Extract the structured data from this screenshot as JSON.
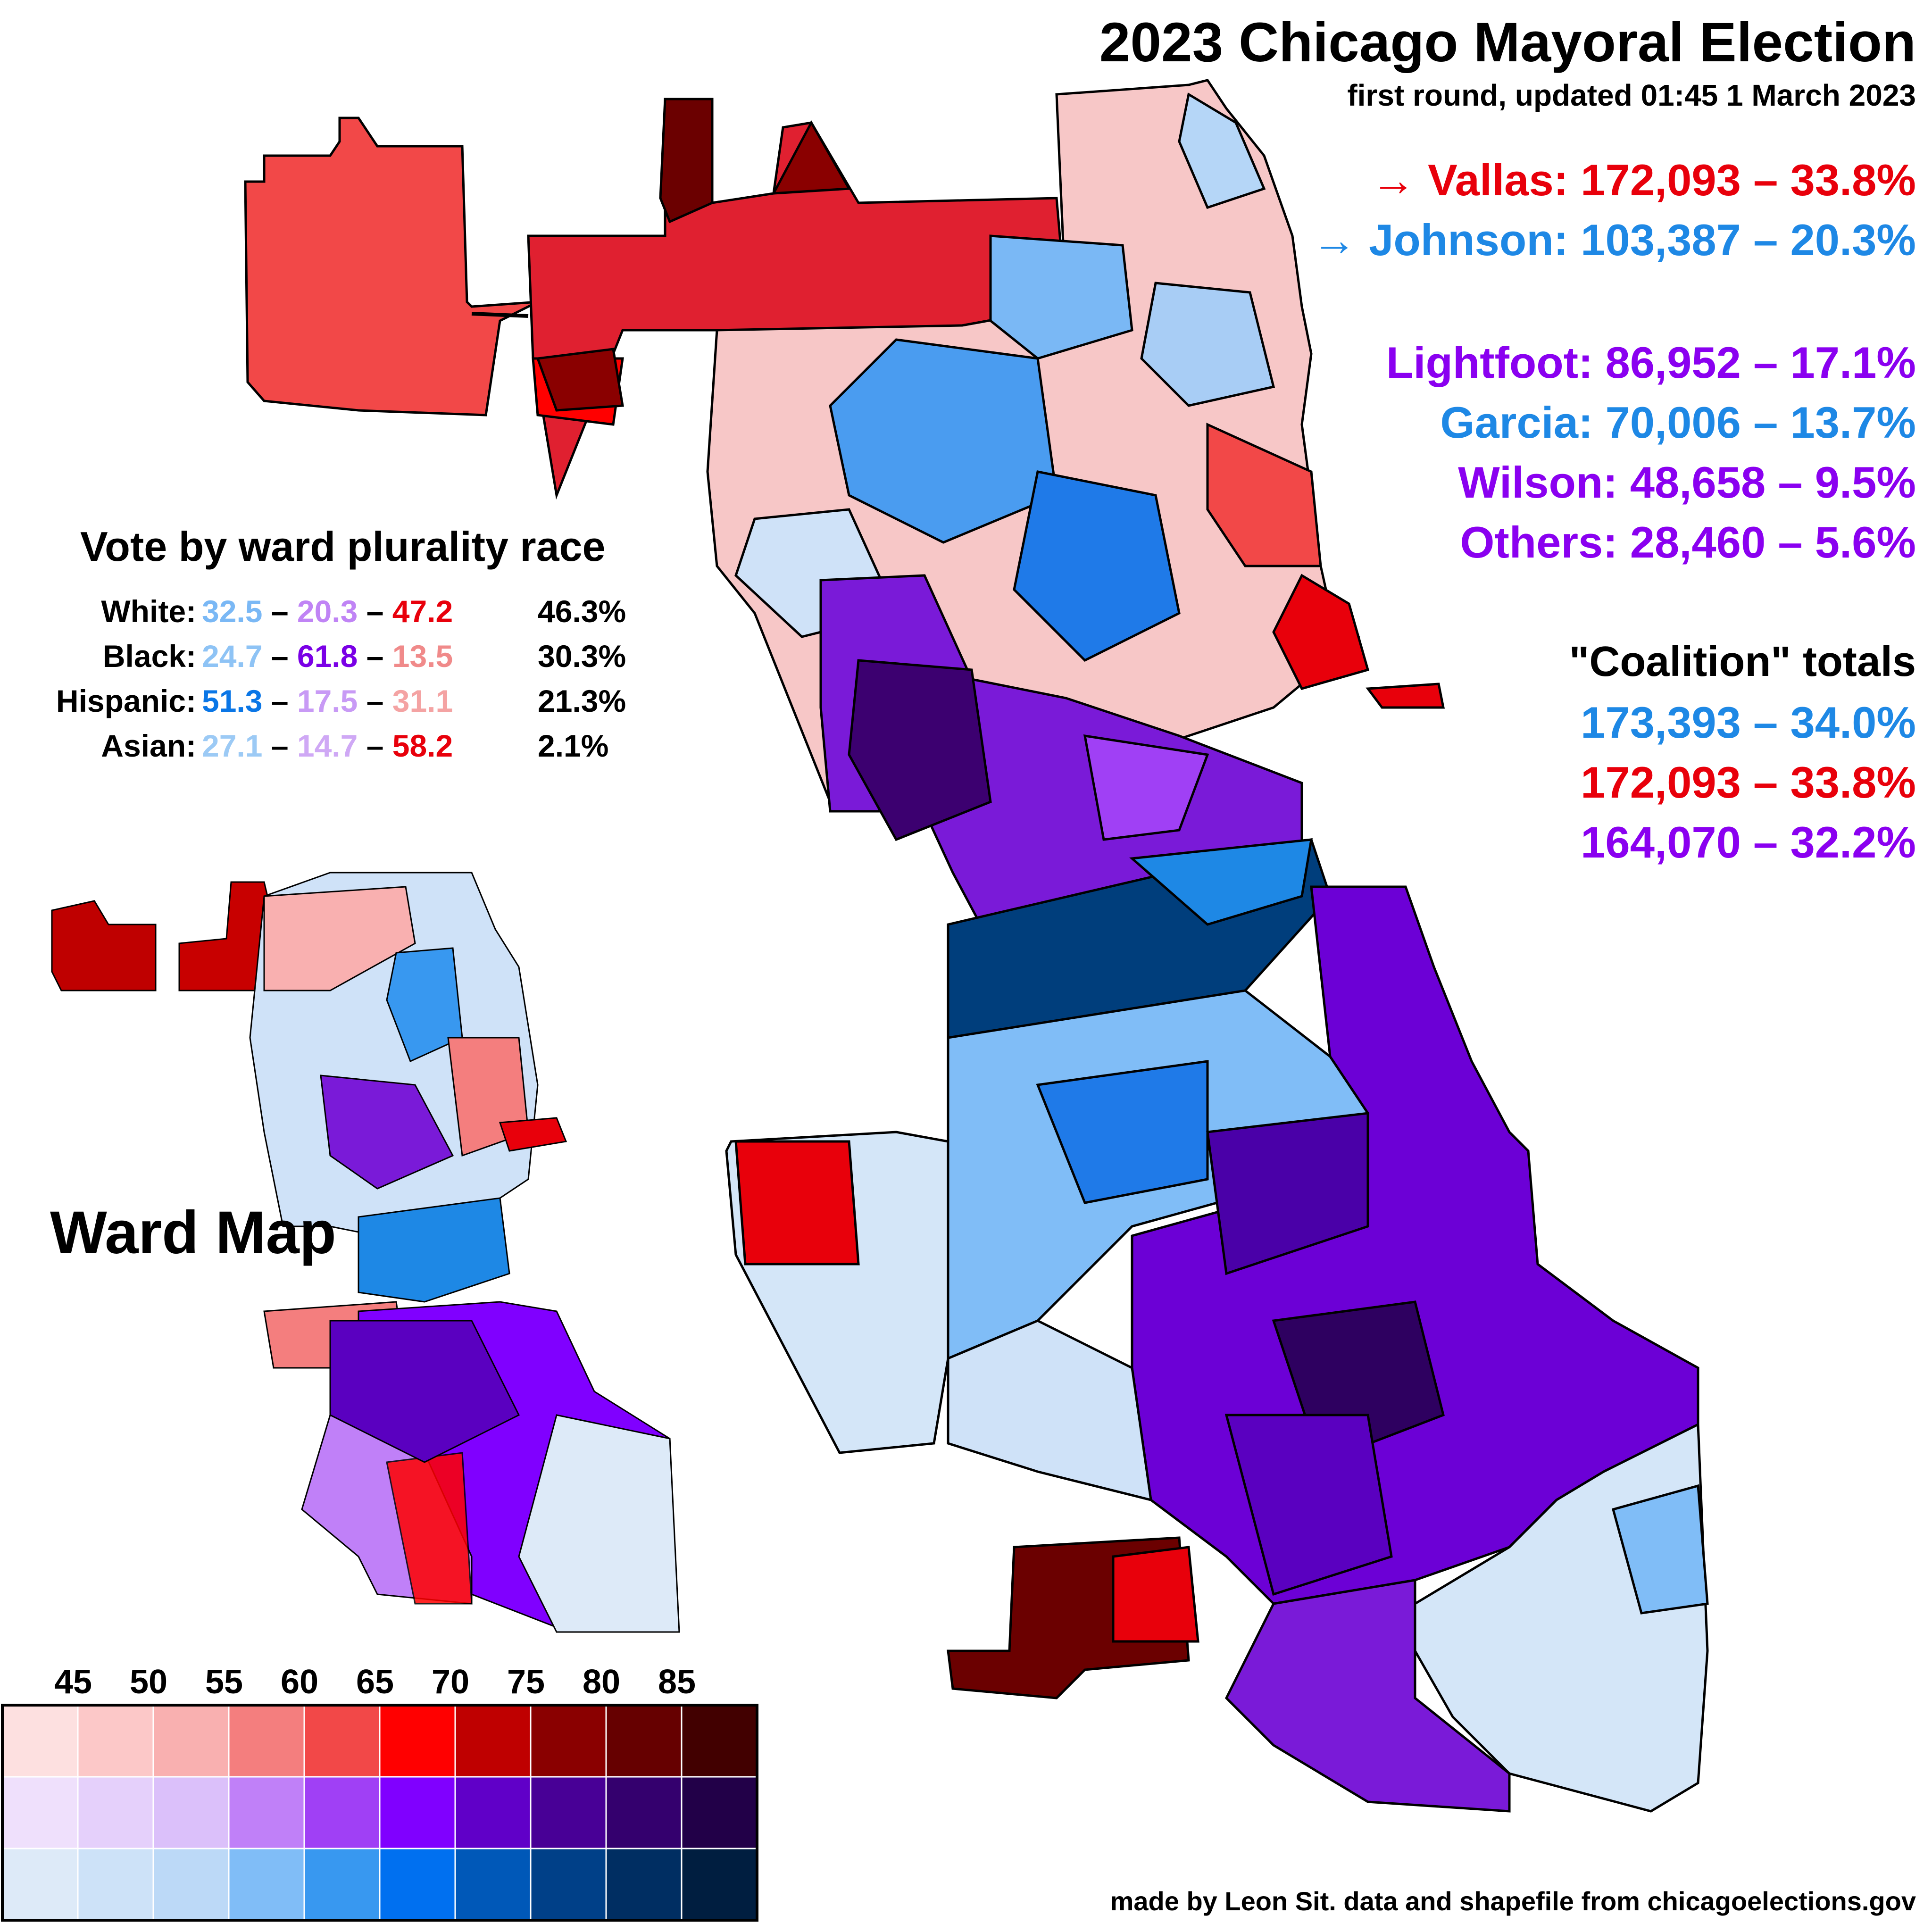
{
  "title": "2023 Chicago Mayoral Election",
  "subtitle": "first round, updated 01:45 1 March 2023",
  "candidates": [
    {
      "label": "→ Vallas: 172,093 – 33.8%",
      "color": "#e8000b"
    },
    {
      "label": "→ Johnson: 103,387 – 20.3%",
      "color": "#1e88e5"
    },
    {
      "label": "Lightfoot: 86,952 – 17.1%",
      "color": "#8a00f0"
    },
    {
      "label": "Garcia: 70,006 – 13.7%",
      "color": "#1e88e5"
    },
    {
      "label": "Wilson: 48,658 – 9.5%",
      "color": "#8a00f0"
    },
    {
      "label": "Others: 28,460 – 5.6%",
      "color": "#8a00f0"
    }
  ],
  "coalition": {
    "heading": "\"Coalition\" totals",
    "rows": [
      {
        "label": "173,393 – 34.0%",
        "color": "#1e88e5"
      },
      {
        "label": "172,093 – 33.8%",
        "color": "#e8000b"
      },
      {
        "label": "164,070 – 32.2%",
        "color": "#8a00f0"
      }
    ]
  },
  "race_table": {
    "title": "Vote by ward plurality race",
    "rows": [
      {
        "race": "White:",
        "blue": "32.5",
        "purple": "20.3",
        "red": "47.2",
        "share": "46.3%",
        "colors": [
          "#7ab8f5",
          "#c084f5",
          "#e8000b"
        ]
      },
      {
        "race": "Black:",
        "blue": "24.7",
        "purple": "61.8",
        "red": "13.5",
        "share": "30.3%",
        "colors": [
          "#8ec3f5",
          "#7a00e6",
          "#f08a8a"
        ]
      },
      {
        "race": "Hispanic:",
        "blue": "51.3",
        "purple": "17.5",
        "red": "31.1",
        "share": "21.3%",
        "colors": [
          "#0a76e6",
          "#c89af5",
          "#f4a3a3"
        ]
      },
      {
        "race": "Asian:",
        "blue": "27.1",
        "purple": "14.7",
        "red": "58.2",
        "share": "2.1%",
        "colors": [
          "#9ccaf5",
          "#cfa8f5",
          "#e8000b"
        ]
      }
    ],
    "separator": "–"
  },
  "ward_map_title": "Ward Map",
  "legend": {
    "ticks": [
      "45",
      "50",
      "55",
      "60",
      "65",
      "70",
      "75",
      "80",
      "85"
    ],
    "red": [
      "#fde0e0",
      "#fcc8c8",
      "#f9b0b0",
      "#f47e7e",
      "#f24848",
      "#ff0000",
      "#bf0000",
      "#8a0000",
      "#660000",
      "#420000"
    ],
    "purple": [
      "#efe0fc",
      "#e5d0fb",
      "#dbc0fa",
      "#c080f8",
      "#a040f5",
      "#8000ff",
      "#6000c8",
      "#480096",
      "#34006e",
      "#220048"
    ],
    "blue": [
      "#ddeaf8",
      "#cde2f8",
      "#bcd9f7",
      "#80bdf7",
      "#3898f0",
      "#0070f0",
      "#0058b8",
      "#004088",
      "#002e62",
      "#001e40"
    ]
  },
  "credit": "made by Leon Sit. data and shapefile from chicagoelections.gov"
}
